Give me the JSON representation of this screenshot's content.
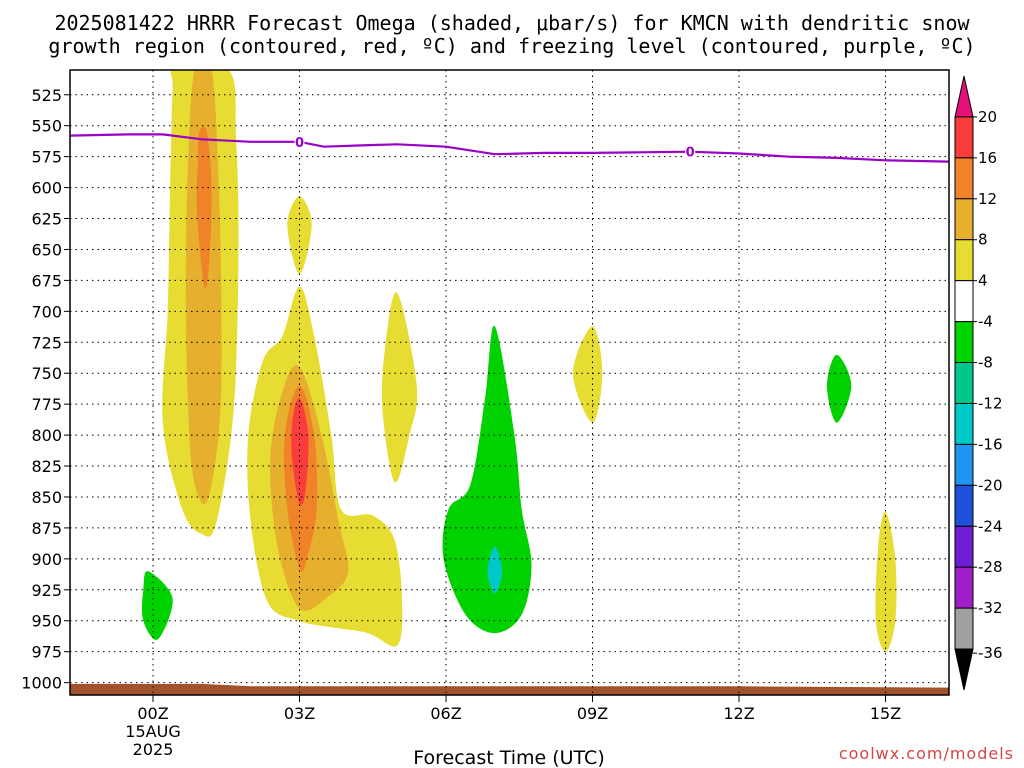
{
  "title_line1": "2025081422 HRRR Forecast Omega (shaded, μbar/s) for KMCN with dendritic snow",
  "title_line2": "growth region (contoured, red, ºC) and freezing level (contoured, purple, ºC)",
  "credit": "coolwx.com/models",
  "chart_data": {
    "type": "contour",
    "title": "2025081422 HRRR Forecast Omega (shaded, μbar/s) for KMCN with dendritic snow growth region (contoured, red, ºC) and freezing level (contoured, purple, ºC)",
    "xlabel": "Forecast Time (UTC)",
    "ylabel": "",
    "xlim": [
      -1.7,
      16.3
    ],
    "ylim": [
      1010,
      505
    ],
    "x_ticks": [
      {
        "value": 0,
        "label": "00Z",
        "sub1": "15AUG",
        "sub2": "2025"
      },
      {
        "value": 3,
        "label": "03Z",
        "sub1": "",
        "sub2": ""
      },
      {
        "value": 6,
        "label": "06Z",
        "sub1": "",
        "sub2": ""
      },
      {
        "value": 9,
        "label": "09Z",
        "sub1": "",
        "sub2": ""
      },
      {
        "value": 12,
        "label": "12Z",
        "sub1": "",
        "sub2": ""
      },
      {
        "value": 15,
        "label": "15Z",
        "sub1": "",
        "sub2": ""
      }
    ],
    "y_ticks": [
      525,
      550,
      575,
      600,
      625,
      650,
      675,
      700,
      725,
      750,
      775,
      800,
      825,
      850,
      875,
      900,
      925,
      950,
      975,
      1000
    ],
    "grid": true,
    "colorbar": {
      "levels": [
        {
          "label": "",
          "color": "#e5107a"
        },
        {
          "label": "20",
          "color": "#fa3c3c"
        },
        {
          "label": "16",
          "color": "#f08228"
        },
        {
          "label": "12",
          "color": "#e6af2d"
        },
        {
          "label": "8",
          "color": "#e6dc32"
        },
        {
          "label": "4",
          "color": "#ffffff"
        },
        {
          "label": "-4",
          "color": "#00d200"
        },
        {
          "label": "-8",
          "color": "#00c88c"
        },
        {
          "label": "-12",
          "color": "#00c8c8"
        },
        {
          "label": "-16",
          "color": "#1e96f0"
        },
        {
          "label": "-20",
          "color": "#1e50dc"
        },
        {
          "label": "-24",
          "color": "#6e1ed2"
        },
        {
          "label": "-28",
          "color": "#a01ec8"
        },
        {
          "label": "-32",
          "color": "#a0a0a0"
        },
        {
          "label": "-36",
          "color": "#000000"
        }
      ]
    },
    "freezing_level": {
      "color": "#9a00c8",
      "label": "0",
      "label_points": [
        [
          3,
          563
        ],
        [
          11,
          571
        ]
      ],
      "points": [
        [
          -1.7,
          558
        ],
        [
          -0.5,
          557
        ],
        [
          0.2,
          557
        ],
        [
          1,
          561
        ],
        [
          2,
          563
        ],
        [
          3,
          563
        ],
        [
          3.5,
          567
        ],
        [
          4.2,
          566
        ],
        [
          5,
          565
        ],
        [
          6,
          567
        ],
        [
          7,
          573
        ],
        [
          8,
          572
        ],
        [
          9,
          572
        ],
        [
          10,
          571.5
        ],
        [
          11,
          571
        ],
        [
          12,
          572.5
        ],
        [
          13,
          575
        ],
        [
          14,
          576
        ],
        [
          15,
          578
        ],
        [
          16.3,
          579
        ]
      ]
    },
    "omega_regions": [
      {
        "color": "#e6dc32",
        "level": "4 to 8",
        "polygon": [
          [
            0.45,
            505
          ],
          [
            1.55,
            505
          ],
          [
            1.7,
            560
          ],
          [
            1.75,
            650
          ],
          [
            1.65,
            780
          ],
          [
            1.3,
            870
          ],
          [
            1.0,
            880
          ],
          [
            0.6,
            860
          ],
          [
            0.2,
            790
          ],
          [
            0.3,
            700
          ],
          [
            0.35,
            600
          ],
          [
            0.4,
            520
          ]
        ]
      },
      {
        "color": "#e6af2d",
        "level": "8 to 12",
        "polygon": [
          [
            0.85,
            505
          ],
          [
            1.2,
            505
          ],
          [
            1.35,
            600
          ],
          [
            1.4,
            700
          ],
          [
            1.38,
            780
          ],
          [
            1.2,
            840
          ],
          [
            1.0,
            855
          ],
          [
            0.78,
            820
          ],
          [
            0.68,
            720
          ],
          [
            0.7,
            600
          ]
        ]
      },
      {
        "color": "#f08228",
        "level": "12 to 16",
        "polygon": [
          [
            0.95,
            555
          ],
          [
            1.1,
            555
          ],
          [
            1.2,
            600
          ],
          [
            1.15,
            660
          ],
          [
            1.05,
            680
          ],
          [
            0.9,
            620
          ],
          [
            0.92,
            580
          ]
        ]
      },
      {
        "color": "#e6dc32",
        "level": "4 to 8",
        "polygon": [
          [
            3.0,
            607
          ],
          [
            3.25,
            630
          ],
          [
            3.0,
            670
          ],
          [
            2.75,
            630
          ]
        ]
      },
      {
        "color": "#e6dc32",
        "level": "4 to 8",
        "polygon": [
          [
            3.0,
            680
          ],
          [
            3.3,
            720
          ],
          [
            3.65,
            800
          ],
          [
            3.85,
            860
          ],
          [
            4.5,
            865
          ],
          [
            4.95,
            885
          ],
          [
            5.1,
            935
          ],
          [
            5.0,
            970
          ],
          [
            4.4,
            960
          ],
          [
            3.6,
            955
          ],
          [
            3.0,
            950
          ],
          [
            2.35,
            935
          ],
          [
            2.0,
            870
          ],
          [
            1.95,
            800
          ],
          [
            2.25,
            740
          ],
          [
            2.65,
            720
          ]
        ]
      },
      {
        "color": "#e6af2d",
        "level": "8 to 12",
        "polygon": [
          [
            3.0,
            745
          ],
          [
            3.45,
            800
          ],
          [
            3.8,
            870
          ],
          [
            4.0,
            910
          ],
          [
            3.6,
            930
          ],
          [
            3.0,
            940
          ],
          [
            2.55,
            890
          ],
          [
            2.4,
            820
          ],
          [
            2.65,
            765
          ]
        ]
      },
      {
        "color": "#f08228",
        "level": "12 to 16",
        "polygon": [
          [
            3.0,
            760
          ],
          [
            3.3,
            800
          ],
          [
            3.35,
            860
          ],
          [
            3.15,
            900
          ],
          [
            3.0,
            908
          ],
          [
            2.75,
            860
          ],
          [
            2.7,
            800
          ]
        ]
      },
      {
        "color": "#fa3c3c",
        "level": "16 to 20",
        "polygon": [
          [
            3.0,
            770
          ],
          [
            3.18,
            800
          ],
          [
            3.12,
            845
          ],
          [
            3.0,
            855
          ],
          [
            2.85,
            820
          ],
          [
            2.85,
            790
          ]
        ]
      },
      {
        "color": "#e6dc32",
        "level": "4 to 8",
        "polygon": [
          [
            5.0,
            685
          ],
          [
            5.4,
            760
          ],
          [
            5.25,
            800
          ],
          [
            4.95,
            838
          ],
          [
            4.7,
            780
          ],
          [
            4.75,
            730
          ]
        ]
      },
      {
        "color": "#e6dc32",
        "level": "4 to 8",
        "polygon": [
          [
            9.0,
            712
          ],
          [
            9.2,
            750
          ],
          [
            9.0,
            790
          ],
          [
            8.6,
            750
          ]
        ]
      },
      {
        "color": "#e6dc32",
        "level": "4 to 8",
        "polygon": [
          [
            15.0,
            862
          ],
          [
            15.2,
            900
          ],
          [
            15.2,
            950
          ],
          [
            15.0,
            975
          ],
          [
            14.8,
            950
          ],
          [
            14.85,
            890
          ]
        ]
      },
      {
        "color": "#00d200",
        "level": "-8 to -4",
        "polygon": [
          [
            -0.1,
            910
          ],
          [
            0.4,
            932
          ],
          [
            0.1,
            965
          ],
          [
            -0.2,
            950
          ],
          [
            -0.2,
            925
          ]
        ]
      },
      {
        "color": "#00d200",
        "level": "-8 to -4",
        "polygon": [
          [
            7.0,
            712
          ],
          [
            7.4,
            800
          ],
          [
            7.55,
            860
          ],
          [
            7.75,
            905
          ],
          [
            7.55,
            945
          ],
          [
            7.0,
            960
          ],
          [
            6.4,
            945
          ],
          [
            5.95,
            900
          ],
          [
            6.05,
            860
          ],
          [
            6.5,
            840
          ],
          [
            6.8,
            770
          ]
        ]
      },
      {
        "color": "#00c8c8",
        "level": "-16 to -12",
        "polygon": [
          [
            7.0,
            890
          ],
          [
            7.15,
            910
          ],
          [
            7.0,
            928
          ],
          [
            6.85,
            910
          ]
        ]
      },
      {
        "color": "#00d200",
        "level": "-8 to -4",
        "polygon": [
          [
            14.0,
            735
          ],
          [
            14.3,
            760
          ],
          [
            14.0,
            790
          ],
          [
            13.8,
            760
          ]
        ]
      }
    ],
    "terrain": {
      "color": "#a0522d",
      "points": [
        [
          -1.7,
          1001
        ],
        [
          1.0,
          1001
        ],
        [
          2.0,
          1003
        ],
        [
          12.0,
          1003
        ],
        [
          16.3,
          1004
        ]
      ]
    }
  }
}
